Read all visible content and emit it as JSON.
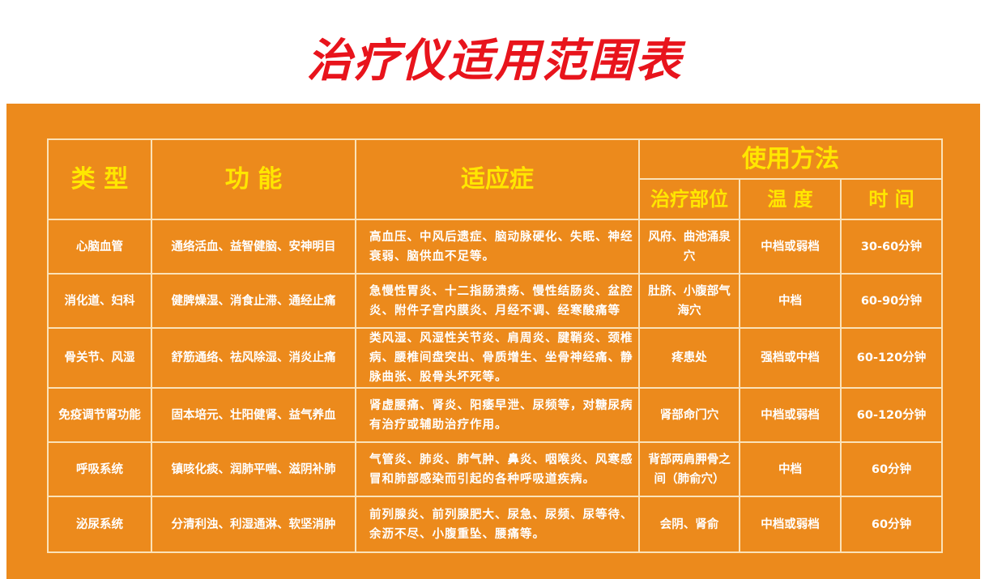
{
  "title": "治疗仪适用范围表",
  "colors": {
    "title": "#e8141c",
    "background": "#ec8a1c",
    "header_text": "#ffe600",
    "border": "#fbe2b8"
  },
  "headers": {
    "type": "类 型",
    "function": "功 能",
    "indications": "适应症",
    "usage": "使用方法",
    "site": "治疗部位",
    "temperature": "温 度",
    "time": "时 间"
  },
  "rows": [
    {
      "type": "心脑血管",
      "function": "通络活血、益智健脑、安神明目",
      "indications": "高血压、中风后遗症、脑动脉硬化、失眠、神经衰弱、脑供血不足等。",
      "site": "风府、曲池涌泉穴",
      "temperature": "中档或弱档",
      "time": "30-60分钟"
    },
    {
      "type": "消化道、妇科",
      "function": "健脾燥湿、消食止滞、通经止痛",
      "indications": "急慢性胃炎、十二指肠溃疡、慢性结肠炎、盆腔炎、附件子宫内膜炎、月经不调、经寒酸痛等",
      "site": "肚脐、小腹部气海穴",
      "temperature": "中档",
      "time": "60-90分钟"
    },
    {
      "type": "骨关节、风湿",
      "function": "舒筋通络、祛风除湿、消炎止痛",
      "indications": "类风湿、风湿性关节炎、肩周炎、腱鞘炎、颈椎病、腰椎间盘突出、骨质增生、坐骨神经痛、静脉曲张、股骨头坏死等。",
      "site": "疼患处",
      "temperature": "强档或中档",
      "time": "60-120分钟"
    },
    {
      "type": "免疫调节肾功能",
      "function": "固本培元、壮阳健肾、益气养血",
      "indications": "肾虚腰痛、肾炎、阳痿早泄、尿频等，对糖尿病有治疗或辅助治疗作用。",
      "site": "肾部命门穴",
      "temperature": "中档或弱档",
      "time": "60-120分钟"
    },
    {
      "type": "呼吸系统",
      "function": "镇咳化痰、润肺平喘、滋阴补肺",
      "indications": "气管炎、肺炎、肺气肿、鼻炎、咽喉炎、风寒感冒和肺部感染而引起的各种呼吸道疾病。",
      "site": "背部两肩胛骨之间（肺俞穴）",
      "temperature": "中档",
      "time": "60分钟"
    },
    {
      "type": "泌尿系统",
      "function": "分清利浊、利湿通淋、软坚消肿",
      "indications": "前列腺炎、前列腺肥大、尿急、尿频、尿等待、余沥不尽、小腹重坠、腰痛等。",
      "site": "会阴、肾俞",
      "temperature": "中档或弱档",
      "time": "60分钟"
    }
  ]
}
